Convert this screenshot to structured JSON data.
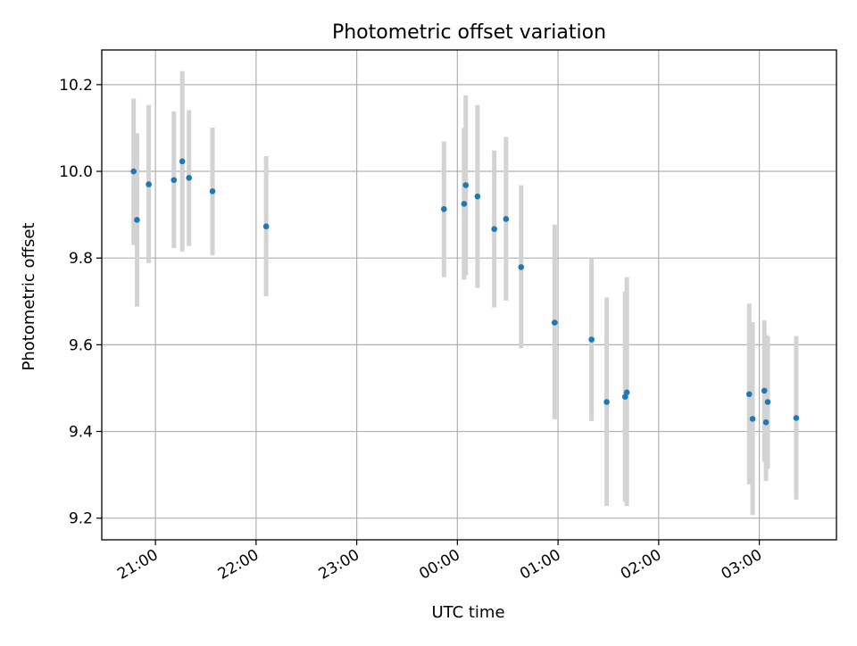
{
  "chart_data": {
    "type": "scatter",
    "title": "Photometric offset variation",
    "xlabel": "UTC time",
    "ylabel": "Photometric offset",
    "x_format": "HH:MM",
    "xlim": [
      "2000-01-01T20:28:00",
      "2000-01-02T03:46:00"
    ],
    "ylim": [
      9.15,
      10.28
    ],
    "x_ticks": [
      {
        "time": "2000-01-01T21:00:00",
        "label": "21:00"
      },
      {
        "time": "2000-01-01T22:00:00",
        "label": "22:00"
      },
      {
        "time": "2000-01-01T23:00:00",
        "label": "23:00"
      },
      {
        "time": "2000-01-02T00:00:00",
        "label": "00:00"
      },
      {
        "time": "2000-01-02T01:00:00",
        "label": "01:00"
      },
      {
        "time": "2000-01-02T02:00:00",
        "label": "02:00"
      },
      {
        "time": "2000-01-02T03:00:00",
        "label": "03:00"
      }
    ],
    "y_ticks": [
      9.2,
      9.4,
      9.6,
      9.8,
      10.0,
      10.2
    ],
    "y_tick_labels": [
      "9.2",
      "9.4",
      "9.6",
      "9.8",
      "10.0",
      "10.2"
    ],
    "grid": true,
    "point_color": "#1f77b4",
    "errorbar_color": "#d3d3d3",
    "points": [
      {
        "t": "2000-01-01T20:47:00",
        "y": 10.0,
        "lo": 9.83,
        "hi": 10.168
      },
      {
        "t": "2000-01-01T20:49:00",
        "y": 9.888,
        "lo": 9.688,
        "hi": 10.088
      },
      {
        "t": "2000-01-01T20:56:00",
        "y": 9.97,
        "lo": 9.788,
        "hi": 10.153
      },
      {
        "t": "2000-01-01T21:11:00",
        "y": 9.98,
        "lo": 9.823,
        "hi": 10.138
      },
      {
        "t": "2000-01-01T21:16:00",
        "y": 10.023,
        "lo": 9.815,
        "hi": 10.231
      },
      {
        "t": "2000-01-01T21:20:00",
        "y": 9.985,
        "lo": 9.828,
        "hi": 10.141
      },
      {
        "t": "2000-01-01T21:34:00",
        "y": 9.954,
        "lo": 9.806,
        "hi": 10.101
      },
      {
        "t": "2000-01-01T22:06:00",
        "y": 9.873,
        "lo": 9.712,
        "hi": 10.035
      },
      {
        "t": "2000-01-01T23:52:00",
        "y": 9.913,
        "lo": 9.756,
        "hi": 10.069
      },
      {
        "t": "2000-01-02T00:04:00",
        "y": 9.925,
        "lo": 9.75,
        "hi": 10.1
      },
      {
        "t": "2000-01-02T00:05:00",
        "y": 9.968,
        "lo": 9.76,
        "hi": 10.175
      },
      {
        "t": "2000-01-02T00:12:00",
        "y": 9.942,
        "lo": 9.731,
        "hi": 10.153
      },
      {
        "t": "2000-01-02T00:22:00",
        "y": 9.867,
        "lo": 9.686,
        "hi": 10.048
      },
      {
        "t": "2000-01-02T00:29:00",
        "y": 9.89,
        "lo": 9.702,
        "hi": 10.079
      },
      {
        "t": "2000-01-02T00:38:00",
        "y": 9.779,
        "lo": 9.592,
        "hi": 9.968
      },
      {
        "t": "2000-01-02T00:58:00",
        "y": 9.651,
        "lo": 9.428,
        "hi": 9.877
      },
      {
        "t": "2000-01-02T01:20:00",
        "y": 9.612,
        "lo": 9.424,
        "hi": 9.8
      },
      {
        "t": "2000-01-02T01:29:00",
        "y": 9.468,
        "lo": 9.228,
        "hi": 9.709
      },
      {
        "t": "2000-01-02T01:40:00",
        "y": 9.48,
        "lo": 9.238,
        "hi": 9.722
      },
      {
        "t": "2000-01-02T01:41:00",
        "y": 9.49,
        "lo": 9.228,
        "hi": 9.756
      },
      {
        "t": "2000-01-02T02:54:00",
        "y": 9.486,
        "lo": 9.278,
        "hi": 9.695
      },
      {
        "t": "2000-01-02T02:56:00",
        "y": 9.429,
        "lo": 9.207,
        "hi": 9.652
      },
      {
        "t": "2000-01-02T03:03:00",
        "y": 9.494,
        "lo": 9.33,
        "hi": 9.656
      },
      {
        "t": "2000-01-02T03:04:00",
        "y": 9.421,
        "lo": 9.286,
        "hi": 9.622
      },
      {
        "t": "2000-01-02T03:05:00",
        "y": 9.468,
        "lo": 9.314,
        "hi": 9.62
      },
      {
        "t": "2000-01-02T03:22:00",
        "y": 9.431,
        "lo": 9.243,
        "hi": 9.62
      }
    ]
  }
}
